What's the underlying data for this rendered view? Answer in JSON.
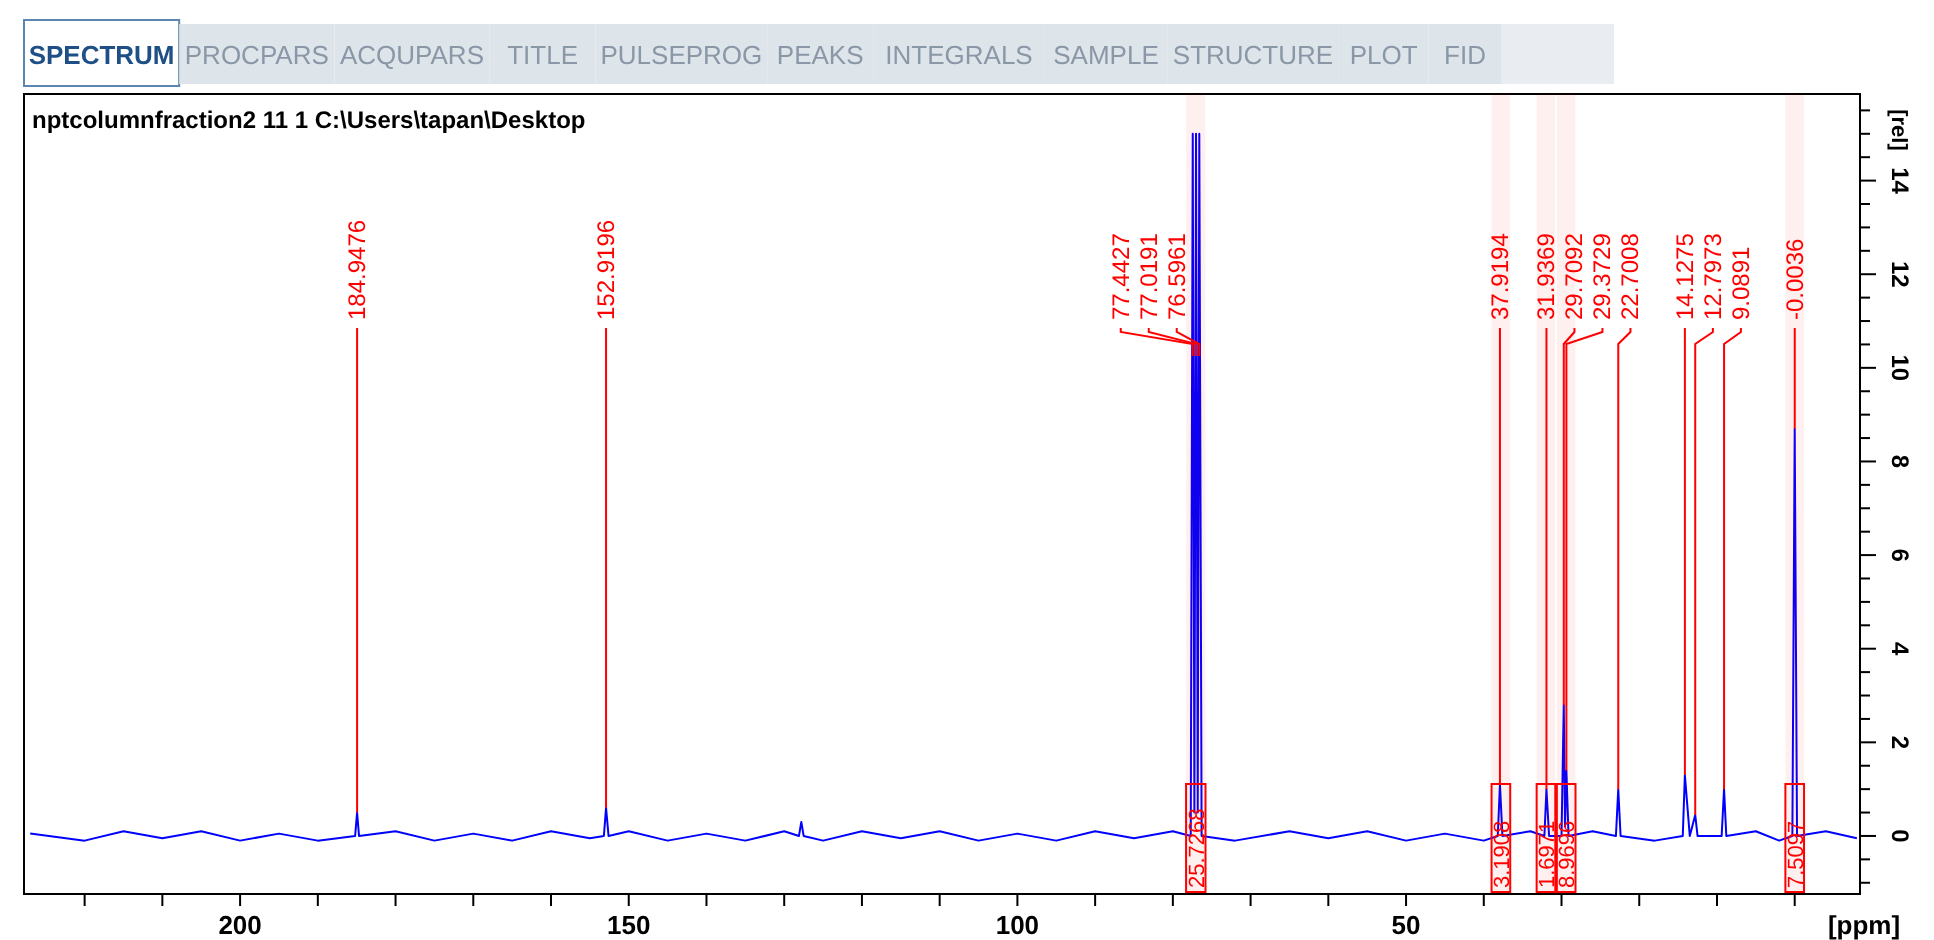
{
  "chart_data": {
    "type": "line",
    "title": "nptcolumnfraction2  11  1  C:\\Users\\tapan\\Desktop",
    "xlabel": "[ppm]",
    "ylabel": "[rel]",
    "xlim": [
      227.8,
      -8.4
    ],
    "ylim": [
      -1.24,
      15.85
    ],
    "xticks": [
      {
        "value": 220,
        "label": null
      },
      {
        "value": 210,
        "label": null
      },
      200,
      {
        "value": 190,
        "label": null
      },
      {
        "value": 180,
        "label": null
      },
      {
        "value": 170,
        "label": null
      },
      {
        "value": 160,
        "label": null
      },
      150,
      {
        "value": 140,
        "label": null
      },
      {
        "value": 130,
        "label": null
      },
      {
        "value": 120,
        "label": null
      },
      {
        "value": 110,
        "label": null
      },
      100,
      {
        "value": 90,
        "label": null
      },
      {
        "value": 80,
        "label": null
      },
      {
        "value": 70,
        "label": null
      },
      {
        "value": 60,
        "label": null
      },
      50,
      {
        "value": 40,
        "label": null
      },
      {
        "value": 30,
        "label": null
      },
      {
        "value": 20,
        "label": null
      },
      {
        "value": 10,
        "label": null
      },
      {
        "value": 0,
        "label": null
      }
    ],
    "yticks": [
      {
        "value": -1,
        "label": null
      },
      {
        "value": -0.5,
        "label": null
      },
      0,
      {
        "value": 0.5,
        "label": null
      },
      {
        "value": 1,
        "label": null
      },
      {
        "value": 1.5,
        "label": null
      },
      2,
      {
        "value": 2.5,
        "label": null
      },
      {
        "value": 3,
        "label": null
      },
      {
        "value": 3.5,
        "label": null
      },
      4,
      {
        "value": 4.5,
        "label": null
      },
      {
        "value": 5,
        "label": null
      },
      {
        "value": 5.5,
        "label": null
      },
      6,
      {
        "value": 6.5,
        "label": null
      },
      {
        "value": 7,
        "label": null
      },
      {
        "value": 7.5,
        "label": null
      },
      8,
      {
        "value": 8.5,
        "label": null
      },
      {
        "value": 9,
        "label": null
      },
      {
        "value": 9.5,
        "label": null
      },
      10,
      {
        "value": 10.5,
        "label": null
      },
      {
        "value": 11,
        "label": null
      },
      {
        "value": 11.5,
        "label": null
      },
      12,
      {
        "value": 12.5,
        "label": null
      },
      {
        "value": 13,
        "label": null
      },
      {
        "value": 13.5,
        "label": null
      },
      14,
      {
        "value": 14.5,
        "label": null
      },
      {
        "value": 15,
        "label": null
      },
      {
        "value": 15.5,
        "label": null
      }
    ],
    "grid": false,
    "marker": "none",
    "line_style": "solid",
    "series": [
      {
        "color": "#0000ff",
        "x": [
          227,
          220,
          215,
          210,
          205,
          200,
          195,
          190,
          185.2,
          184.95,
          184.7,
          180,
          175,
          170,
          165,
          160,
          155,
          153.2,
          152.92,
          152.6,
          150,
          145,
          140,
          135,
          130,
          128.1,
          127.8,
          127.5,
          125,
          120,
          115,
          110,
          105,
          100,
          95,
          90,
          85,
          80,
          77.7,
          77.44,
          77.23,
          77.02,
          76.8,
          76.6,
          76.3,
          72,
          65,
          60,
          55,
          50,
          45,
          40,
          38.2,
          37.92,
          37.6,
          34,
          32.2,
          31.94,
          31.6,
          30,
          29.71,
          29.55,
          29.37,
          29.1,
          26,
          23,
          22.7,
          22.4,
          18,
          14.4,
          14.13,
          13.5,
          12.8,
          12.5,
          9.4,
          9.09,
          8.8,
          5,
          2,
          0.3,
          0,
          -0.3,
          -4,
          -8
        ],
        "values": [
          0.05,
          -0.1,
          0.1,
          -0.05,
          0.1,
          -0.1,
          0.05,
          -0.1,
          0,
          0.5,
          0,
          0.1,
          -0.1,
          0.05,
          -0.1,
          0.1,
          -0.05,
          0,
          0.6,
          0,
          0.1,
          -0.1,
          0.05,
          -0.1,
          0.1,
          0,
          0.3,
          0,
          -0.1,
          0.1,
          -0.05,
          0.1,
          -0.1,
          0.05,
          -0.1,
          0.1,
          -0.05,
          0.1,
          0,
          15,
          0.5,
          15,
          0.5,
          15,
          0,
          -0.1,
          0.1,
          -0.05,
          0.1,
          -0.1,
          0.05,
          -0.1,
          0,
          1.1,
          0,
          0.1,
          0,
          1,
          0,
          0,
          2.8,
          0.2,
          1.4,
          0,
          0.1,
          0,
          1,
          0,
          -0.1,
          0,
          1.3,
          0,
          0.45,
          0,
          0,
          1,
          0,
          0.1,
          -0.1,
          0,
          8.7,
          0,
          0.1,
          -0.05
        ]
      }
    ],
    "annotations": [
      "SPECTRUM",
      "PROCPARS",
      "ACQUPARS",
      "TITLE",
      "PULSEPROG",
      "PEAKS",
      "INTEGRALS",
      "SAMPLE",
      "STRUCTURE",
      "PLOT",
      "FID",
      {
        "text": "184.9476",
        "x": 184.9476,
        "y": 0.5
      },
      {
        "text": "152.9196",
        "x": 152.9196,
        "y": 0.6
      },
      {
        "text": "77.4427",
        "x": 77.4427,
        "y": 10.4
      },
      {
        "text": "77.0191",
        "x": 77.0191,
        "y": 10.4
      },
      {
        "text": "76.5961",
        "x": 76.5961,
        "y": 10.4
      },
      {
        "text": "37.9194",
        "x": 37.9194,
        "y": 1.1
      },
      {
        "text": "31.9369",
        "x": 31.9369,
        "y": 1
      },
      {
        "text": "29.7092",
        "x": 29.7092,
        "y": 2.8
      },
      {
        "text": "29.3729",
        "x": 29.3729,
        "y": 1.4
      },
      {
        "text": "22.7008",
        "x": 22.7008,
        "y": 1
      },
      {
        "text": "14.1275",
        "x": 14.1275,
        "y": 1.3
      },
      {
        "text": "12.7973",
        "x": 12.7973,
        "y": 0.45
      },
      {
        "text": "9.0891",
        "x": 9.0891,
        "y": 1
      },
      {
        "text": "-0.0036",
        "x": -0.0036,
        "y": 8.7
      }
    ],
    "bands": [
      {
        "axis": "x",
        "from": 78.3,
        "to": 75.8,
        "label": "25.7268",
        "color": "#ff0000"
      },
      {
        "axis": "x",
        "from": 39,
        "to": 36.6,
        "label": "3.1908",
        "color": "#ff0000"
      },
      {
        "axis": "x",
        "from": 33.2,
        "to": 30.8,
        "label": "1.6971",
        "color": "#ff0000"
      },
      {
        "axis": "x",
        "from": 30.6,
        "to": 28.2,
        "label": "8.9696",
        "color": "#ff0000"
      },
      {
        "axis": "x",
        "from": 1.2,
        "to": -1.2,
        "label": "7.5097",
        "color": "#ff0000"
      }
    ]
  }
}
